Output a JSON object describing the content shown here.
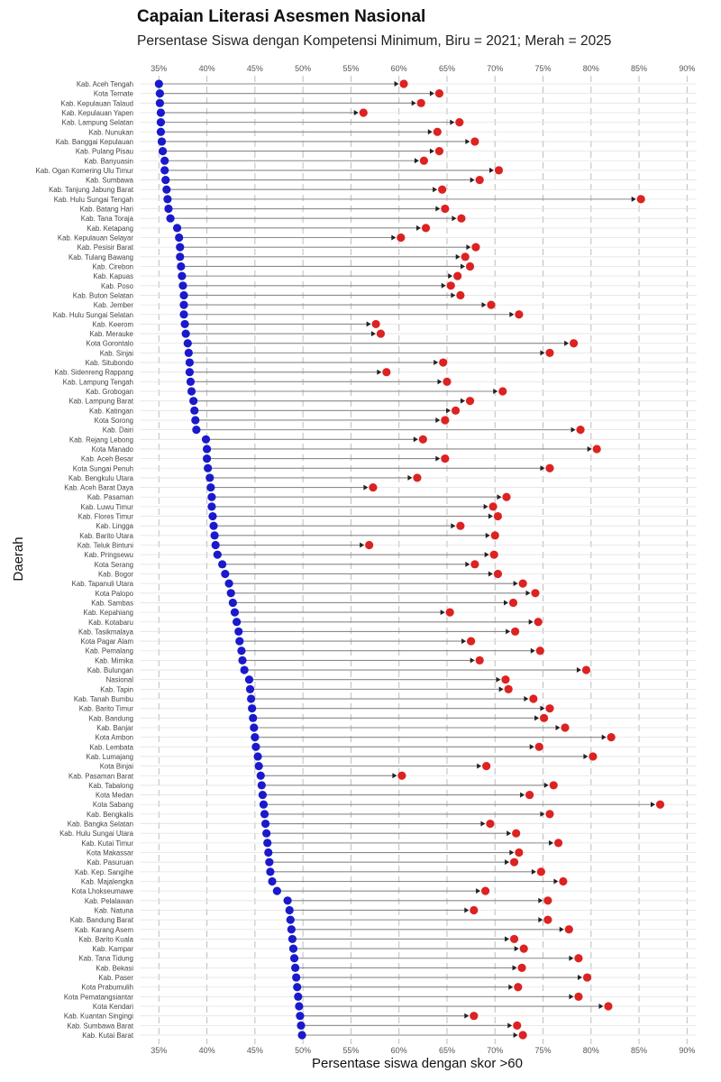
{
  "chart_data": {
    "type": "dumbbell",
    "title": "Capaian Literasi Asesmen Nasional",
    "subtitle": "Persentase Siswa dengan Kompetensi Minimum, Biru = 2021; Merah = 2025",
    "xlabel": "Persentase siswa dengan skor >60",
    "ylabel": "Daerah",
    "xlim": [
      33,
      91
    ],
    "x_ticks": [
      "35%",
      "40%",
      "45%",
      "50%",
      "55%",
      "60%",
      "65%",
      "70%",
      "75%",
      "80%",
      "85%",
      "90%"
    ],
    "x_tick_values": [
      35,
      40,
      45,
      50,
      55,
      60,
      65,
      70,
      75,
      80,
      85,
      90
    ],
    "grid": true,
    "series_colors": {
      "2021": "#1a1acc",
      "2025": "#dd2222"
    },
    "rows": [
      {
        "label": "Kab. Aceh Tengah",
        "v2021": 35.0,
        "v2025": 60.5
      },
      {
        "label": "Kota Ternate",
        "v2021": 35.1,
        "v2025": 64.2
      },
      {
        "label": "Kab. Kepulauan Talaud",
        "v2021": 35.1,
        "v2025": 62.3
      },
      {
        "label": "Kab. Kepulauan Yapen",
        "v2021": 35.2,
        "v2025": 56.3
      },
      {
        "label": "Kab. Lampung Selatan",
        "v2021": 35.2,
        "v2025": 66.3
      },
      {
        "label": "Kab. Nunukan",
        "v2021": 35.2,
        "v2025": 64.0
      },
      {
        "label": "Kab. Banggai Kepulauan",
        "v2021": 35.3,
        "v2025": 67.9
      },
      {
        "label": "Kab. Pulang Pisau",
        "v2021": 35.4,
        "v2025": 64.2
      },
      {
        "label": "Kab. Banyuasin",
        "v2021": 35.6,
        "v2025": 62.6
      },
      {
        "label": "Kab. Ogan Komering Ulu Timur",
        "v2021": 35.6,
        "v2025": 70.4
      },
      {
        "label": "Kab. Sumbawa",
        "v2021": 35.7,
        "v2025": 68.4
      },
      {
        "label": "Kab. Tanjung Jabung Barat",
        "v2021": 35.8,
        "v2025": 64.5
      },
      {
        "label": "Kab. Hulu Sungai Tengah",
        "v2021": 35.9,
        "v2025": 85.2
      },
      {
        "label": "Kab. Batang Hari",
        "v2021": 36.0,
        "v2025": 64.8
      },
      {
        "label": "Kab. Tana Toraja",
        "v2021": 36.2,
        "v2025": 66.5
      },
      {
        "label": "Kab. Ketapang",
        "v2021": 36.9,
        "v2025": 62.8
      },
      {
        "label": "Kab. Kepulauan Selayar",
        "v2021": 37.1,
        "v2025": 60.2
      },
      {
        "label": "Kab. Pesisir Barat",
        "v2021": 37.2,
        "v2025": 68.0
      },
      {
        "label": "Kab. Tulang Bawang",
        "v2021": 37.2,
        "v2025": 66.9
      },
      {
        "label": "Kab. Cirebon",
        "v2021": 37.3,
        "v2025": 67.4
      },
      {
        "label": "Kab. Kapuas",
        "v2021": 37.4,
        "v2025": 66.1
      },
      {
        "label": "Kab. Poso",
        "v2021": 37.5,
        "v2025": 65.4
      },
      {
        "label": "Kab. Buton Selatan",
        "v2021": 37.6,
        "v2025": 66.4
      },
      {
        "label": "Kab. Jember",
        "v2021": 37.6,
        "v2025": 69.6
      },
      {
        "label": "Kab. Hulu Sungai Selatan",
        "v2021": 37.6,
        "v2025": 72.5
      },
      {
        "label": "Kab. Keerom",
        "v2021": 37.7,
        "v2025": 57.6
      },
      {
        "label": "Kab. Merauke",
        "v2021": 37.8,
        "v2025": 58.1
      },
      {
        "label": "Kota Gorontalo",
        "v2021": 38.0,
        "v2025": 78.2
      },
      {
        "label": "Kab. Sinjai",
        "v2021": 38.1,
        "v2025": 75.7
      },
      {
        "label": "Kab. Situbondo",
        "v2021": 38.2,
        "v2025": 64.6
      },
      {
        "label": "Kab. Sidenreng Rappang",
        "v2021": 38.2,
        "v2025": 58.7
      },
      {
        "label": "Kab. Lampung Tengah",
        "v2021": 38.3,
        "v2025": 65.0
      },
      {
        "label": "Kab. Grobogan",
        "v2021": 38.4,
        "v2025": 70.8
      },
      {
        "label": "Kab. Lampung Barat",
        "v2021": 38.6,
        "v2025": 67.4
      },
      {
        "label": "Kab. Katingan",
        "v2021": 38.7,
        "v2025": 65.9
      },
      {
        "label": "Kota Sorong",
        "v2021": 38.8,
        "v2025": 64.8
      },
      {
        "label": "Kab. Dairi",
        "v2021": 38.9,
        "v2025": 78.9
      },
      {
        "label": "Kab. Rejang Lebong",
        "v2021": 39.9,
        "v2025": 62.5
      },
      {
        "label": "Kota Manado",
        "v2021": 40.0,
        "v2025": 80.6
      },
      {
        "label": "Kab. Aceh Besar",
        "v2021": 40.0,
        "v2025": 64.8
      },
      {
        "label": "Kota Sungai Penuh",
        "v2021": 40.1,
        "v2025": 75.7
      },
      {
        "label": "Kab. Bengkulu Utara",
        "v2021": 40.3,
        "v2025": 61.9
      },
      {
        "label": "Kab. Aceh Barat Daya",
        "v2021": 40.4,
        "v2025": 57.3
      },
      {
        "label": "Kab. Pasaman",
        "v2021": 40.5,
        "v2025": 71.2
      },
      {
        "label": "Kab. Luwu Timur",
        "v2021": 40.5,
        "v2025": 69.8
      },
      {
        "label": "Kab. Flores Timur",
        "v2021": 40.6,
        "v2025": 70.3
      },
      {
        "label": "Kab. Lingga",
        "v2021": 40.7,
        "v2025": 66.4
      },
      {
        "label": "Kab. Barito Utara",
        "v2021": 40.8,
        "v2025": 70.0
      },
      {
        "label": "Kab. Teluk Bintuni",
        "v2021": 40.9,
        "v2025": 56.9
      },
      {
        "label": "Kab. Pringsewu",
        "v2021": 41.1,
        "v2025": 69.9
      },
      {
        "label": "Kota Serang",
        "v2021": 41.6,
        "v2025": 67.9
      },
      {
        "label": "Kab. Bogor",
        "v2021": 41.9,
        "v2025": 70.3
      },
      {
        "label": "Kab. Tapanuli Utara",
        "v2021": 42.3,
        "v2025": 72.9
      },
      {
        "label": "Kota Palopo",
        "v2021": 42.5,
        "v2025": 74.2
      },
      {
        "label": "Kab. Sambas",
        "v2021": 42.7,
        "v2025": 71.9
      },
      {
        "label": "Kab. Kepahiang",
        "v2021": 42.9,
        "v2025": 65.3
      },
      {
        "label": "Kab. Kotabaru",
        "v2021": 43.1,
        "v2025": 74.5
      },
      {
        "label": "Kab. Tasikmalaya",
        "v2021": 43.3,
        "v2025": 72.1
      },
      {
        "label": "Kota Pagar Alam",
        "v2021": 43.4,
        "v2025": 67.5
      },
      {
        "label": "Kab. Pemalang",
        "v2021": 43.6,
        "v2025": 74.7
      },
      {
        "label": "Kab. Mimika",
        "v2021": 43.7,
        "v2025": 68.4
      },
      {
        "label": "Kab. Bulungan",
        "v2021": 43.9,
        "v2025": 79.5
      },
      {
        "label": "Nasional",
        "v2021": 44.4,
        "v2025": 71.1
      },
      {
        "label": "Kab. Tapin",
        "v2021": 44.5,
        "v2025": 71.4
      },
      {
        "label": "Kab. Tanah Bumbu",
        "v2021": 44.6,
        "v2025": 74.0
      },
      {
        "label": "Kab. Barito Timur",
        "v2021": 44.7,
        "v2025": 75.7
      },
      {
        "label": "Kab. Bandung",
        "v2021": 44.8,
        "v2025": 75.1
      },
      {
        "label": "Kab. Banjar",
        "v2021": 44.9,
        "v2025": 77.3
      },
      {
        "label": "Kota Ambon",
        "v2021": 45.0,
        "v2025": 82.1
      },
      {
        "label": "Kab. Lembata",
        "v2021": 45.1,
        "v2025": 74.6
      },
      {
        "label": "Kab. Lumajang",
        "v2021": 45.3,
        "v2025": 80.2
      },
      {
        "label": "Kota Binjai",
        "v2021": 45.4,
        "v2025": 69.1
      },
      {
        "label": "Kab. Pasaman Barat",
        "v2021": 45.6,
        "v2025": 60.3
      },
      {
        "label": "Kab. Tabalong",
        "v2021": 45.7,
        "v2025": 76.1
      },
      {
        "label": "Kota Medan",
        "v2021": 45.8,
        "v2025": 73.6
      },
      {
        "label": "Kota Sabang",
        "v2021": 45.9,
        "v2025": 87.2
      },
      {
        "label": "Kab. Bengkalis",
        "v2021": 46.0,
        "v2025": 75.7
      },
      {
        "label": "Kab. Bangka Selatan",
        "v2021": 46.1,
        "v2025": 69.5
      },
      {
        "label": "Kab. Hulu Sungai Utara",
        "v2021": 46.2,
        "v2025": 72.2
      },
      {
        "label": "Kab. Kutai Timur",
        "v2021": 46.3,
        "v2025": 76.6
      },
      {
        "label": "Kota Makassar",
        "v2021": 46.4,
        "v2025": 72.5
      },
      {
        "label": "Kab. Pasuruan",
        "v2021": 46.5,
        "v2025": 72.0
      },
      {
        "label": "Kab. Kep. Sangihe",
        "v2021": 46.6,
        "v2025": 74.8
      },
      {
        "label": "Kab. Majalengka",
        "v2021": 46.8,
        "v2025": 77.1
      },
      {
        "label": "Kota Lhokseumawe",
        "v2021": 47.3,
        "v2025": 69.0
      },
      {
        "label": "Kab. Pelalawan",
        "v2021": 48.4,
        "v2025": 75.5
      },
      {
        "label": "Kab. Natuna",
        "v2021": 48.6,
        "v2025": 67.8
      },
      {
        "label": "Kab. Bandung Barat",
        "v2021": 48.7,
        "v2025": 75.5
      },
      {
        "label": "Kab. Karang Asem",
        "v2021": 48.8,
        "v2025": 77.7
      },
      {
        "label": "Kab. Barito Kuala",
        "v2021": 48.9,
        "v2025": 72.0
      },
      {
        "label": "Kab. Kampar",
        "v2021": 49.0,
        "v2025": 73.0
      },
      {
        "label": "Kab. Tana Tidung",
        "v2021": 49.1,
        "v2025": 78.7
      },
      {
        "label": "Kab. Bekasi",
        "v2021": 49.2,
        "v2025": 72.8
      },
      {
        "label": "Kab. Paser",
        "v2021": 49.3,
        "v2025": 79.6
      },
      {
        "label": "Kota Prabumulih",
        "v2021": 49.4,
        "v2025": 72.4
      },
      {
        "label": "Kota Pematangsiantar",
        "v2021": 49.5,
        "v2025": 78.7
      },
      {
        "label": "Kota Kendari",
        "v2021": 49.6,
        "v2025": 81.8
      },
      {
        "label": "Kab. Kuantan Singingi",
        "v2021": 49.7,
        "v2025": 67.8
      },
      {
        "label": "Kab. Sumbawa Barat",
        "v2021": 49.8,
        "v2025": 72.3
      },
      {
        "label": "Kab. Kutai Barat",
        "v2021": 49.9,
        "v2025": 72.9
      }
    ]
  }
}
